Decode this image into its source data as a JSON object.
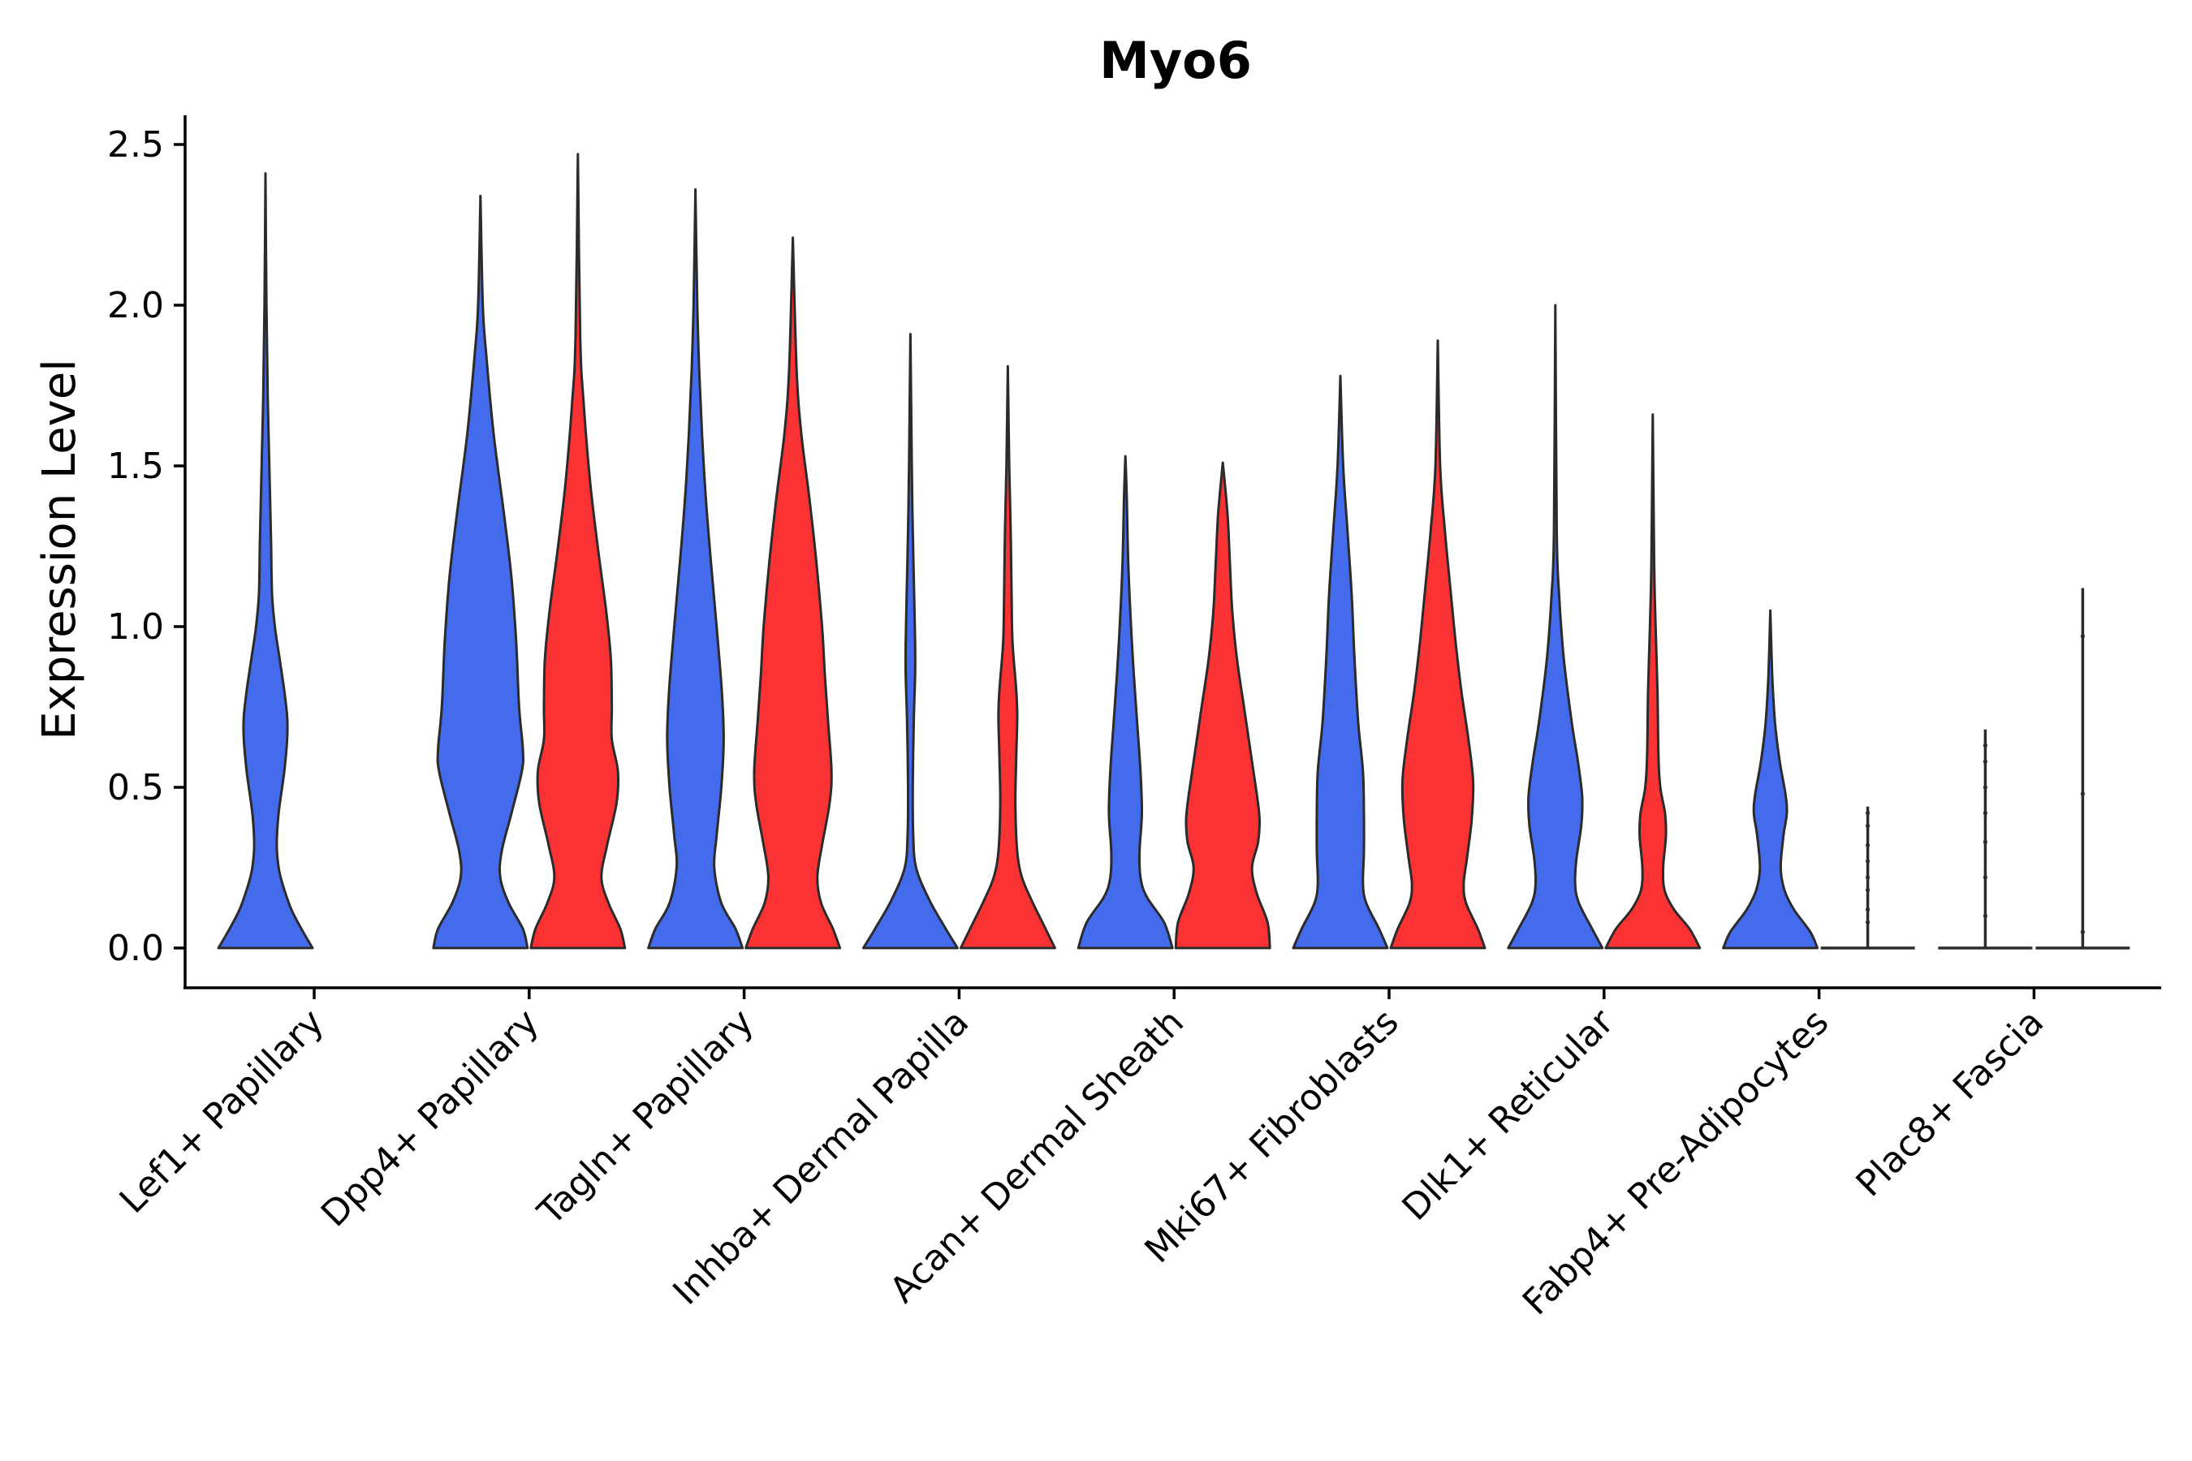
{
  "chart_data": {
    "type": "violin",
    "title": "Myo6",
    "xlabel": "",
    "ylabel": "Expression Level",
    "ylim": [
      -0.12,
      2.6
    ],
    "yticks": [
      "0.0",
      "0.5",
      "1.0",
      "1.5",
      "2.0",
      "2.5"
    ],
    "grid": false,
    "legend": "none",
    "categories": [
      "Lef1+ Papillary",
      "Dpp4+ Papillary",
      "Tagln+ Papillary",
      "Inhba+ Dermal Papilla",
      "Acan+ Dermal Sheath",
      "Mki67+ Fibroblasts",
      "Dlk1+ Reticular",
      "Fabp4+ Pre-Adipocytes",
      "Plac8+ Fascia"
    ],
    "colors": {
      "blue": "#436bec",
      "red": "#fb3234",
      "outline": "#2b2b2b"
    },
    "violins": [
      {
        "category": 0,
        "side": "left",
        "color": "blue",
        "max": 2.41,
        "density": [
          [
            0,
            1.0
          ],
          [
            0.05,
            0.8
          ],
          [
            0.12,
            0.55
          ],
          [
            0.2,
            0.36
          ],
          [
            0.25,
            0.28
          ],
          [
            0.32,
            0.24
          ],
          [
            0.42,
            0.28
          ],
          [
            0.55,
            0.4
          ],
          [
            0.65,
            0.46
          ],
          [
            0.72,
            0.46
          ],
          [
            0.8,
            0.4
          ],
          [
            0.9,
            0.3
          ],
          [
            1.0,
            0.2
          ],
          [
            1.1,
            0.14
          ],
          [
            1.25,
            0.12
          ],
          [
            1.45,
            0.09
          ],
          [
            1.7,
            0.05
          ],
          [
            2.0,
            0.02
          ],
          [
            2.41,
            0
          ]
        ]
      },
      {
        "category": 1,
        "side": "left",
        "color": "blue",
        "max": 2.34,
        "density": [
          [
            0,
            1.0
          ],
          [
            0.06,
            0.9
          ],
          [
            0.14,
            0.6
          ],
          [
            0.22,
            0.42
          ],
          [
            0.3,
            0.45
          ],
          [
            0.42,
            0.66
          ],
          [
            0.55,
            0.88
          ],
          [
            0.62,
            0.9
          ],
          [
            0.75,
            0.82
          ],
          [
            0.95,
            0.76
          ],
          [
            1.15,
            0.66
          ],
          [
            1.35,
            0.5
          ],
          [
            1.6,
            0.28
          ],
          [
            1.85,
            0.12
          ],
          [
            2.0,
            0.05
          ],
          [
            2.34,
            0
          ]
        ]
      },
      {
        "category": 1,
        "side": "right",
        "color": "red",
        "max": 2.47,
        "density": [
          [
            0,
            1.0
          ],
          [
            0.06,
            0.9
          ],
          [
            0.14,
            0.65
          ],
          [
            0.22,
            0.5
          ],
          [
            0.32,
            0.62
          ],
          [
            0.45,
            0.82
          ],
          [
            0.55,
            0.85
          ],
          [
            0.65,
            0.72
          ],
          [
            0.75,
            0.72
          ],
          [
            0.9,
            0.7
          ],
          [
            1.05,
            0.6
          ],
          [
            1.25,
            0.42
          ],
          [
            1.45,
            0.26
          ],
          [
            1.7,
            0.12
          ],
          [
            1.9,
            0.05
          ],
          [
            2.47,
            0
          ]
        ]
      },
      {
        "category": 2,
        "side": "left",
        "color": "blue",
        "max": 2.36,
        "density": [
          [
            0,
            1.0
          ],
          [
            0.06,
            0.85
          ],
          [
            0.14,
            0.55
          ],
          [
            0.25,
            0.4
          ],
          [
            0.35,
            0.45
          ],
          [
            0.5,
            0.55
          ],
          [
            0.65,
            0.6
          ],
          [
            0.8,
            0.56
          ],
          [
            1.0,
            0.45
          ],
          [
            1.2,
            0.33
          ],
          [
            1.4,
            0.22
          ],
          [
            1.6,
            0.14
          ],
          [
            1.8,
            0.08
          ],
          [
            2.0,
            0.04
          ],
          [
            2.36,
            0
          ]
        ]
      },
      {
        "category": 2,
        "side": "right",
        "color": "red",
        "max": 2.21,
        "density": [
          [
            0,
            1.0
          ],
          [
            0.06,
            0.85
          ],
          [
            0.14,
            0.6
          ],
          [
            0.22,
            0.52
          ],
          [
            0.32,
            0.62
          ],
          [
            0.45,
            0.78
          ],
          [
            0.55,
            0.82
          ],
          [
            0.7,
            0.75
          ],
          [
            0.85,
            0.68
          ],
          [
            1.0,
            0.62
          ],
          [
            1.2,
            0.5
          ],
          [
            1.4,
            0.35
          ],
          [
            1.6,
            0.18
          ],
          [
            1.8,
            0.08
          ],
          [
            2.21,
            0
          ]
        ]
      },
      {
        "category": 3,
        "side": "left",
        "color": "blue",
        "max": 1.91,
        "density": [
          [
            0,
            1.0
          ],
          [
            0.06,
            0.75
          ],
          [
            0.15,
            0.4
          ],
          [
            0.25,
            0.12
          ],
          [
            0.35,
            0.06
          ],
          [
            0.5,
            0.05
          ],
          [
            0.7,
            0.07
          ],
          [
            0.85,
            0.1
          ],
          [
            0.95,
            0.1
          ],
          [
            1.1,
            0.08
          ],
          [
            1.3,
            0.05
          ],
          [
            1.5,
            0.03
          ],
          [
            1.91,
            0
          ]
        ]
      },
      {
        "category": 3,
        "side": "right",
        "color": "red",
        "max": 1.81,
        "density": [
          [
            0,
            1.0
          ],
          [
            0.06,
            0.8
          ],
          [
            0.15,
            0.5
          ],
          [
            0.22,
            0.3
          ],
          [
            0.3,
            0.2
          ],
          [
            0.45,
            0.16
          ],
          [
            0.6,
            0.18
          ],
          [
            0.72,
            0.2
          ],
          [
            0.8,
            0.18
          ],
          [
            0.95,
            0.1
          ],
          [
            1.1,
            0.08
          ],
          [
            1.3,
            0.06
          ],
          [
            1.5,
            0.03
          ],
          [
            1.81,
            0
          ]
        ]
      },
      {
        "category": 4,
        "side": "left",
        "color": "blue",
        "max": 1.53,
        "density": [
          [
            0,
            1.0
          ],
          [
            0.08,
            0.82
          ],
          [
            0.16,
            0.45
          ],
          [
            0.22,
            0.32
          ],
          [
            0.3,
            0.3
          ],
          [
            0.42,
            0.35
          ],
          [
            0.55,
            0.32
          ],
          [
            0.7,
            0.25
          ],
          [
            0.85,
            0.18
          ],
          [
            1.0,
            0.12
          ],
          [
            1.2,
            0.06
          ],
          [
            1.4,
            0.03
          ],
          [
            1.53,
            0
          ]
        ]
      },
      {
        "category": 4,
        "side": "right",
        "color": "red",
        "max": 1.51,
        "density": [
          [
            0,
            1.0
          ],
          [
            0.08,
            0.95
          ],
          [
            0.17,
            0.72
          ],
          [
            0.25,
            0.62
          ],
          [
            0.33,
            0.75
          ],
          [
            0.4,
            0.78
          ],
          [
            0.48,
            0.72
          ],
          [
            0.6,
            0.6
          ],
          [
            0.75,
            0.45
          ],
          [
            0.9,
            0.3
          ],
          [
            1.05,
            0.2
          ],
          [
            1.2,
            0.15
          ],
          [
            1.35,
            0.1
          ],
          [
            1.51,
            0
          ]
        ]
      },
      {
        "category": 5,
        "side": "left",
        "color": "blue",
        "max": 1.78,
        "density": [
          [
            0,
            1.0
          ],
          [
            0.06,
            0.82
          ],
          [
            0.14,
            0.55
          ],
          [
            0.2,
            0.48
          ],
          [
            0.3,
            0.5
          ],
          [
            0.42,
            0.5
          ],
          [
            0.55,
            0.48
          ],
          [
            0.7,
            0.38
          ],
          [
            0.9,
            0.3
          ],
          [
            1.1,
            0.24
          ],
          [
            1.3,
            0.15
          ],
          [
            1.5,
            0.06
          ],
          [
            1.78,
            0
          ]
        ]
      },
      {
        "category": 5,
        "side": "right",
        "color": "red",
        "max": 1.89,
        "density": [
          [
            0,
            1.0
          ],
          [
            0.06,
            0.85
          ],
          [
            0.14,
            0.6
          ],
          [
            0.2,
            0.55
          ],
          [
            0.28,
            0.62
          ],
          [
            0.4,
            0.72
          ],
          [
            0.52,
            0.75
          ],
          [
            0.65,
            0.65
          ],
          [
            0.8,
            0.5
          ],
          [
            0.95,
            0.38
          ],
          [
            1.1,
            0.28
          ],
          [
            1.3,
            0.15
          ],
          [
            1.5,
            0.05
          ],
          [
            1.89,
            0
          ]
        ]
      },
      {
        "category": 6,
        "side": "left",
        "color": "blue",
        "max": 2.0,
        "density": [
          [
            0,
            1.0
          ],
          [
            0.06,
            0.78
          ],
          [
            0.14,
            0.5
          ],
          [
            0.2,
            0.42
          ],
          [
            0.28,
            0.45
          ],
          [
            0.38,
            0.55
          ],
          [
            0.47,
            0.57
          ],
          [
            0.58,
            0.48
          ],
          [
            0.7,
            0.35
          ],
          [
            0.9,
            0.18
          ],
          [
            1.1,
            0.08
          ],
          [
            1.3,
            0.03
          ],
          [
            2.0,
            0
          ]
        ]
      },
      {
        "category": 6,
        "side": "right",
        "color": "red",
        "max": 1.66,
        "density": [
          [
            0,
            1.0
          ],
          [
            0.06,
            0.78
          ],
          [
            0.12,
            0.45
          ],
          [
            0.18,
            0.25
          ],
          [
            0.25,
            0.22
          ],
          [
            0.35,
            0.28
          ],
          [
            0.42,
            0.26
          ],
          [
            0.5,
            0.16
          ],
          [
            0.6,
            0.12
          ],
          [
            0.8,
            0.1
          ],
          [
            1.0,
            0.06
          ],
          [
            1.2,
            0.03
          ],
          [
            1.66,
            0
          ]
        ]
      },
      {
        "category": 7,
        "side": "left",
        "color": "blue",
        "max": 1.05,
        "density": [
          [
            0,
            1.0
          ],
          [
            0.05,
            0.85
          ],
          [
            0.12,
            0.5
          ],
          [
            0.18,
            0.3
          ],
          [
            0.25,
            0.22
          ],
          [
            0.35,
            0.28
          ],
          [
            0.42,
            0.35
          ],
          [
            0.48,
            0.32
          ],
          [
            0.58,
            0.2
          ],
          [
            0.7,
            0.1
          ],
          [
            0.85,
            0.04
          ],
          [
            1.05,
            0
          ]
        ]
      },
      {
        "category": 7,
        "side": "right",
        "color": "red",
        "max": 0.44,
        "density": [
          [
            0,
            0.05
          ],
          [
            0.005,
            0.02
          ],
          [
            0.01,
            0.005
          ],
          [
            0.44,
            0
          ]
        ],
        "jitter": [
          0.08,
          0.12,
          0.18,
          0.22,
          0.27,
          0.32,
          0.38,
          0.42
        ]
      },
      {
        "category": 8,
        "side": "left",
        "color": "blue",
        "max": 0.68,
        "density": [
          [
            0,
            0.03
          ],
          [
            0.005,
            0.01
          ],
          [
            0.01,
            0.004
          ],
          [
            0.68,
            0
          ]
        ],
        "jitter": [
          0.1,
          0.22,
          0.33,
          0.42,
          0.5,
          0.58,
          0.63
        ]
      },
      {
        "category": 8,
        "side": "right",
        "color": "red",
        "max": 1.12,
        "density": [
          [
            0,
            0.03
          ],
          [
            0.005,
            0.01
          ],
          [
            0.01,
            0.004
          ],
          [
            1.12,
            0
          ]
        ],
        "jitter": [
          0.05,
          0.48,
          0.97
        ]
      }
    ]
  }
}
